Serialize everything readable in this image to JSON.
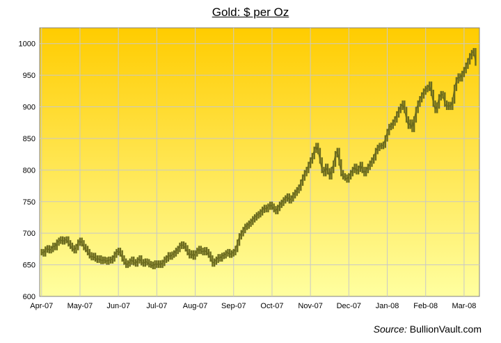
{
  "chart_data": {
    "type": "bar",
    "subtype": "ohlc-daily",
    "title": "Gold: $ per Oz",
    "xlabel": "",
    "ylabel": "",
    "ylim": [
      600,
      1025
    ],
    "yticks": [
      600,
      650,
      700,
      750,
      800,
      850,
      900,
      950,
      1000
    ],
    "xticks": [
      "Apr-07",
      "May-07",
      "Jun-07",
      "Jul-07",
      "Aug-07",
      "Sep-07",
      "Oct-07",
      "Nov-07",
      "Dec-07",
      "Jan-08",
      "Feb-08",
      "Mar-08"
    ],
    "grid": true,
    "legend": "none",
    "colors": {
      "price": "#6b6b1e",
      "bg_top": "#ffcc00",
      "bg_bottom": "#ffffa0",
      "grid": "#c8c8c8"
    },
    "series": [
      {
        "values": [
          [
            0.0,
            670
          ],
          [
            0.05,
            668
          ],
          [
            0.1,
            674
          ],
          [
            0.15,
            676
          ],
          [
            0.2,
            673
          ],
          [
            0.25,
            675
          ],
          [
            0.3,
            680
          ],
          [
            0.35,
            678
          ],
          [
            0.4,
            685
          ],
          [
            0.45,
            688
          ],
          [
            0.5,
            690
          ],
          [
            0.55,
            687
          ],
          [
            0.6,
            689
          ],
          [
            0.65,
            690
          ],
          [
            0.7,
            684
          ],
          [
            0.75,
            680
          ],
          [
            0.8,
            676
          ],
          [
            0.85,
            673
          ],
          [
            0.9,
            678
          ],
          [
            0.95,
            685
          ],
          [
            1.0,
            688
          ],
          [
            1.05,
            684
          ],
          [
            1.1,
            678
          ],
          [
            1.15,
            675
          ],
          [
            1.2,
            670
          ],
          [
            1.25,
            665
          ],
          [
            1.3,
            662
          ],
          [
            1.35,
            664
          ],
          [
            1.4,
            660
          ],
          [
            1.45,
            658
          ],
          [
            1.5,
            660
          ],
          [
            1.55,
            656
          ],
          [
            1.6,
            658
          ],
          [
            1.65,
            657
          ],
          [
            1.7,
            655
          ],
          [
            1.75,
            658
          ],
          [
            1.8,
            657
          ],
          [
            1.85,
            660
          ],
          [
            1.9,
            666
          ],
          [
            1.95,
            670
          ],
          [
            2.0,
            672
          ],
          [
            2.05,
            668
          ],
          [
            2.1,
            660
          ],
          [
            2.15,
            655
          ],
          [
            2.2,
            650
          ],
          [
            2.25,
            652
          ],
          [
            2.3,
            655
          ],
          [
            2.35,
            658
          ],
          [
            2.4,
            654
          ],
          [
            2.45,
            652
          ],
          [
            2.5,
            657
          ],
          [
            2.55,
            660
          ],
          [
            2.6,
            654
          ],
          [
            2.65,
            652
          ],
          [
            2.7,
            655
          ],
          [
            2.75,
            654
          ],
          [
            2.8,
            651
          ],
          [
            2.85,
            650
          ],
          [
            2.9,
            648
          ],
          [
            2.95,
            652
          ],
          [
            3.0,
            650
          ],
          [
            3.05,
            652
          ],
          [
            3.1,
            650
          ],
          [
            3.15,
            653
          ],
          [
            3.2,
            658
          ],
          [
            3.25,
            660
          ],
          [
            3.3,
            665
          ],
          [
            3.35,
            663
          ],
          [
            3.4,
            666
          ],
          [
            3.45,
            668
          ],
          [
            3.5,
            672
          ],
          [
            3.55,
            675
          ],
          [
            3.6,
            680
          ],
          [
            3.65,
            682
          ],
          [
            3.7,
            680
          ],
          [
            3.75,
            676
          ],
          [
            3.8,
            670
          ],
          [
            3.85,
            665
          ],
          [
            3.9,
            668
          ],
          [
            3.95,
            663
          ],
          [
            4.0,
            668
          ],
          [
            4.05,
            672
          ],
          [
            4.1,
            675
          ],
          [
            4.15,
            672
          ],
          [
            4.2,
            670
          ],
          [
            4.25,
            673
          ],
          [
            4.3,
            670
          ],
          [
            4.35,
            666
          ],
          [
            4.4,
            660
          ],
          [
            4.45,
            652
          ],
          [
            4.5,
            655
          ],
          [
            4.55,
            658
          ],
          [
            4.6,
            662
          ],
          [
            4.65,
            660
          ],
          [
            4.7,
            664
          ],
          [
            4.75,
            665
          ],
          [
            4.8,
            668
          ],
          [
            4.85,
            670
          ],
          [
            4.9,
            666
          ],
          [
            4.95,
            668
          ],
          [
            5.0,
            670
          ],
          [
            5.05,
            675
          ],
          [
            5.1,
            685
          ],
          [
            5.15,
            695
          ],
          [
            5.2,
            700
          ],
          [
            5.25,
            705
          ],
          [
            5.3,
            710
          ],
          [
            5.35,
            712
          ],
          [
            5.4,
            715
          ],
          [
            5.45,
            718
          ],
          [
            5.5,
            722
          ],
          [
            5.55,
            725
          ],
          [
            5.6,
            728
          ],
          [
            5.65,
            730
          ],
          [
            5.7,
            733
          ],
          [
            5.75,
            737
          ],
          [
            5.8,
            740
          ],
          [
            5.85,
            738
          ],
          [
            5.9,
            742
          ],
          [
            5.95,
            745
          ],
          [
            6.0,
            742
          ],
          [
            6.05,
            738
          ],
          [
            6.1,
            735
          ],
          [
            6.15,
            740
          ],
          [
            6.2,
            745
          ],
          [
            6.25,
            748
          ],
          [
            6.3,
            752
          ],
          [
            6.35,
            755
          ],
          [
            6.4,
            758
          ],
          [
            6.45,
            752
          ],
          [
            6.5,
            755
          ],
          [
            6.55,
            760
          ],
          [
            6.6,
            764
          ],
          [
            6.65,
            768
          ],
          [
            6.7,
            772
          ],
          [
            6.75,
            780
          ],
          [
            6.8,
            788
          ],
          [
            6.85,
            795
          ],
          [
            6.9,
            800
          ],
          [
            6.95,
            808
          ],
          [
            7.0,
            815
          ],
          [
            7.05,
            822
          ],
          [
            7.1,
            832
          ],
          [
            7.15,
            838
          ],
          [
            7.2,
            830
          ],
          [
            7.25,
            815
          ],
          [
            7.3,
            800
          ],
          [
            7.35,
            795
          ],
          [
            7.4,
            805
          ],
          [
            7.45,
            798
          ],
          [
            7.5,
            790
          ],
          [
            7.55,
            800
          ],
          [
            7.6,
            810
          ],
          [
            7.65,
            825
          ],
          [
            7.7,
            830
          ],
          [
            7.75,
            812
          ],
          [
            7.8,
            795
          ],
          [
            7.85,
            790
          ],
          [
            7.9,
            788
          ],
          [
            7.95,
            785
          ],
          [
            8.0,
            790
          ],
          [
            8.05,
            795
          ],
          [
            8.1,
            800
          ],
          [
            8.15,
            805
          ],
          [
            8.2,
            798
          ],
          [
            8.25,
            802
          ],
          [
            8.3,
            808
          ],
          [
            8.35,
            800
          ],
          [
            8.4,
            795
          ],
          [
            8.45,
            800
          ],
          [
            8.5,
            805
          ],
          [
            8.55,
            810
          ],
          [
            8.6,
            815
          ],
          [
            8.65,
            820
          ],
          [
            8.7,
            830
          ],
          [
            8.75,
            835
          ],
          [
            8.8,
            838
          ],
          [
            8.85,
            838
          ],
          [
            8.9,
            840
          ],
          [
            8.95,
            850
          ],
          [
            9.0,
            860
          ],
          [
            9.05,
            868
          ],
          [
            9.1,
            870
          ],
          [
            9.15,
            875
          ],
          [
            9.2,
            880
          ],
          [
            9.25,
            888
          ],
          [
            9.3,
            895
          ],
          [
            9.35,
            900
          ],
          [
            9.4,
            905
          ],
          [
            9.45,
            895
          ],
          [
            9.5,
            880
          ],
          [
            9.55,
            870
          ],
          [
            9.6,
            875
          ],
          [
            9.65,
            865
          ],
          [
            9.7,
            880
          ],
          [
            9.75,
            895
          ],
          [
            9.8,
            905
          ],
          [
            9.85,
            912
          ],
          [
            9.9,
            918
          ],
          [
            9.95,
            924
          ],
          [
            10.0,
            928
          ],
          [
            10.05,
            930
          ],
          [
            10.1,
            935
          ],
          [
            10.15,
            922
          ],
          [
            10.2,
            905
          ],
          [
            10.25,
            895
          ],
          [
            10.3,
            902
          ],
          [
            10.35,
            915
          ],
          [
            10.4,
            920
          ],
          [
            10.45,
            918
          ],
          [
            10.5,
            905
          ],
          [
            10.55,
            900
          ],
          [
            10.6,
            903
          ],
          [
            10.65,
            900
          ],
          [
            10.7,
            910
          ],
          [
            10.75,
            930
          ],
          [
            10.8,
            942
          ],
          [
            10.85,
            948
          ],
          [
            10.9,
            945
          ],
          [
            10.95,
            952
          ],
          [
            11.0,
            958
          ],
          [
            11.05,
            965
          ],
          [
            11.1,
            972
          ],
          [
            11.15,
            980
          ],
          [
            11.2,
            985
          ],
          [
            11.25,
            988
          ],
          [
            11.3,
            970
          ]
        ]
      }
    ],
    "source_label": "Source:",
    "source_name": "BullionVault.com"
  }
}
